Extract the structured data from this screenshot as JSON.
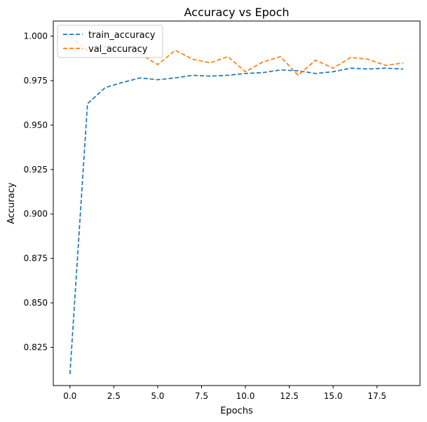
{
  "chart_data": {
    "type": "line",
    "title": "Accuracy vs Epoch",
    "xlabel": "Epochs",
    "ylabel": "Accuracy",
    "xlim": [
      -0.95,
      19.95
    ],
    "ylim": [
      0.8035,
      1.0085
    ],
    "x_ticks": [
      0.0,
      2.5,
      5.0,
      7.5,
      10.0,
      12.5,
      15.0,
      17.5
    ],
    "x_tick_labels": [
      "0.0",
      "2.5",
      "5.0",
      "7.5",
      "10.0",
      "12.5",
      "15.0",
      "17.5"
    ],
    "y_ticks": [
      0.825,
      0.85,
      0.875,
      0.9,
      0.925,
      0.95,
      0.975,
      1.0
    ],
    "y_tick_labels": [
      "0.825",
      "0.850",
      "0.875",
      "0.900",
      "0.925",
      "0.950",
      "0.975",
      "1.000"
    ],
    "grid": false,
    "legend_position": "upper-left",
    "x": [
      0,
      1,
      2,
      3,
      4,
      5,
      6,
      7,
      8,
      9,
      10,
      11,
      12,
      13,
      14,
      15,
      16,
      17,
      18,
      19
    ],
    "series": [
      {
        "name": "train_accuracy",
        "color": "#1f77b4",
        "line_style": "dashed",
        "values": [
          0.81,
          0.962,
          0.971,
          0.974,
          0.9765,
          0.9755,
          0.9765,
          0.978,
          0.9775,
          0.978,
          0.979,
          0.9795,
          0.981,
          0.9805,
          0.979,
          0.98,
          0.982,
          0.9815,
          0.982,
          0.9815
        ]
      },
      {
        "name": "val_accuracy",
        "color": "#ff7f0e",
        "line_style": "dashed",
        "values": [
          1.0,
          0.992,
          0.994,
          0.992,
          0.99,
          0.984,
          0.992,
          0.987,
          0.985,
          0.9885,
          0.98,
          0.9855,
          0.9885,
          0.978,
          0.9865,
          0.982,
          0.988,
          0.987,
          0.9835,
          0.985
        ]
      }
    ]
  }
}
